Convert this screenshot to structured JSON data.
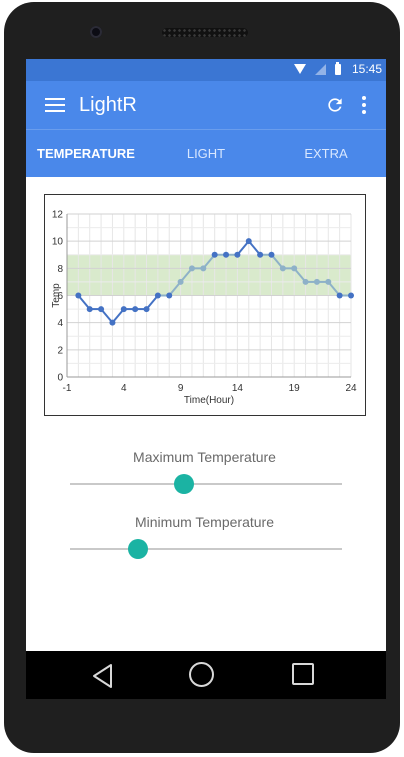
{
  "status_bar": {
    "time": "15:45",
    "icons": [
      "wifi-icon",
      "signal-icon",
      "battery-icon"
    ]
  },
  "app_bar": {
    "title": "LightR",
    "icons": [
      "menu-icon",
      "refresh-icon",
      "more-vert-icon"
    ]
  },
  "tabs": [
    {
      "label": "TEMPERATURE",
      "active": true
    },
    {
      "label": "LIGHT",
      "active": false
    },
    {
      "label": "EXTRA",
      "active": false
    }
  ],
  "chart_data": {
    "type": "line",
    "title": "",
    "xlabel": "Time(Hour)",
    "ylabel": "Temp",
    "xlim": [
      -1,
      24
    ],
    "ylim": [
      0,
      12
    ],
    "x_ticks": [
      -1,
      4,
      9,
      14,
      19,
      24
    ],
    "y_ticks": [
      0,
      2,
      4,
      6,
      8,
      10,
      12
    ],
    "grid": true,
    "band": {
      "from": 6,
      "to": 9,
      "color": "#d9eacc"
    },
    "series": [
      {
        "x": [
          0,
          1,
          2,
          3,
          4,
          5,
          6,
          7,
          8,
          9,
          10,
          11,
          12,
          13,
          14,
          15,
          16,
          17,
          18,
          19,
          20,
          21,
          22,
          23,
          24
        ],
        "values": [
          6,
          5,
          5,
          4,
          5,
          5,
          5,
          6,
          6,
          7,
          8,
          8,
          9,
          9,
          9,
          10,
          9,
          9,
          8,
          8,
          7,
          7,
          7,
          6,
          6
        ]
      }
    ],
    "colors": {
      "outside_band": "#4472c4",
      "inside_band": "#8eb1c8"
    }
  },
  "sliders": [
    {
      "label": "Maximum Temperature",
      "value_fraction": 0.42
    },
    {
      "label": "Minimum Temperature",
      "value_fraction": 0.25
    }
  ],
  "nav_bar": {
    "icons": [
      "back-icon",
      "home-icon",
      "recents-icon"
    ]
  },
  "colors": {
    "status_bar": "#3b76d3",
    "app_bar": "#4a88ea",
    "accent": "#1bb3a3"
  }
}
